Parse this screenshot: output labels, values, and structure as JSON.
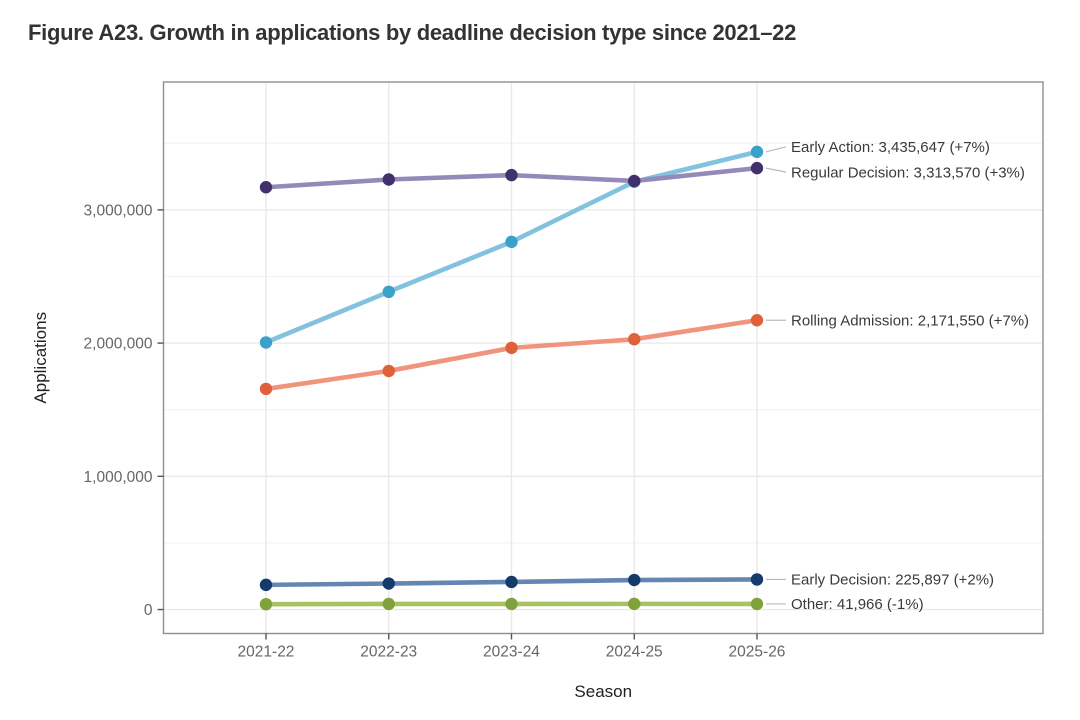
{
  "page": {
    "title": "Figure A23. Growth in applications by deadline decision type since 2021–22"
  },
  "chart_data": {
    "type": "line",
    "title": "Figure A23. Growth in applications by deadline decision type since 2021–22",
    "xlabel": "Season",
    "ylabel": "Applications",
    "categories": [
      "2021-22",
      "2022-23",
      "2023-24",
      "2024-25",
      "2025-26"
    ],
    "y_axis": {
      "ticks": [
        0,
        1000000,
        2000000,
        3000000
      ],
      "tick_labels": [
        "0",
        "1,000,000",
        "2,000,000",
        "3,000,000"
      ],
      "minor_ticks": [
        500000,
        1500000,
        2500000,
        3500000
      ],
      "range_shown": [
        -180000,
        3960000
      ]
    },
    "grid": true,
    "legend": "direct labels at right of last point",
    "series": [
      {
        "name": "Early Action",
        "values": [
          2005000,
          2385000,
          2760000,
          3211000,
          3435647
        ],
        "final_value": 3435647,
        "label": "Early Action: 3,435,647 (+7%)",
        "line_color": "#82c2de",
        "point_color": "#3aa2c8"
      },
      {
        "name": "Regular Decision",
        "values": [
          3170000,
          3228000,
          3261000,
          3217000,
          3313570
        ],
        "final_value": 3313570,
        "label": "Regular Decision: 3,313,570 (+3%)",
        "line_color": "#9489b9",
        "point_color": "#41306c"
      },
      {
        "name": "Rolling Admission",
        "values": [
          1656000,
          1791000,
          1964000,
          2029000,
          2171550
        ],
        "final_value": 2171550,
        "label": "Rolling Admission: 2,171,550 (+7%)",
        "line_color": "#f0947d",
        "point_color": "#e0603c"
      },
      {
        "name": "Early Decision",
        "values": [
          185000,
          195000,
          207000,
          221468,
          225897
        ],
        "final_value": 225897,
        "label": "Early Decision: 225,897 (+2%)",
        "line_color": "#6486b2",
        "point_color": "#153b6d"
      },
      {
        "name": "Other",
        "values": [
          40000,
          41800,
          41800,
          42390,
          41966
        ],
        "final_value": 41966,
        "label": "Other: 41,966 (-1%)",
        "line_color": "#aac162",
        "point_color": "#7fa23b"
      }
    ],
    "style_colors": {
      "gridline_major": "#e8e8e8",
      "gridline_minor": "#f3f3f3",
      "panel_border": "#8f8f8f",
      "tick_label": "#666666",
      "axis_title": "#222222",
      "annotation_text": "#3a3a3a",
      "leader_line": "#bbbbbb"
    }
  }
}
